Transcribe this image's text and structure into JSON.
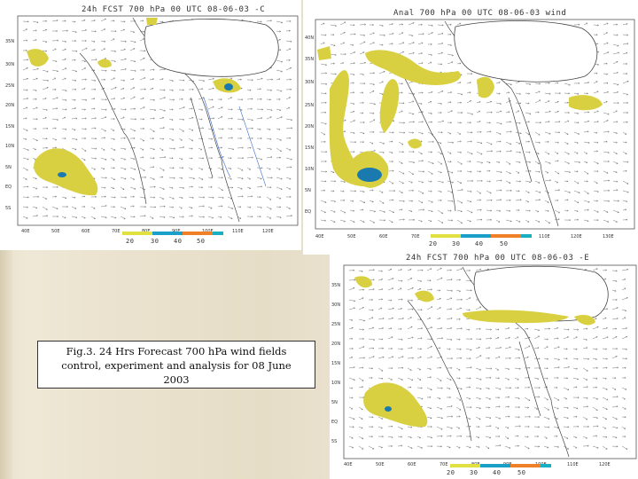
{
  "panels": {
    "control": {
      "title": "24h FCST 700 hPa 00 UTC 08-06-03 -C",
      "legend": [
        "20",
        "30",
        "40",
        "50"
      ]
    },
    "analysis": {
      "title": "Anal 700 hPa 00 UTC 08-06-03 wind",
      "legend": [
        "20",
        "30",
        "40",
        "50"
      ]
    },
    "experiment": {
      "title": "24h FCST 700 hPa 00 UTC 08-06-03 -E",
      "legend": [
        "20",
        "30",
        "40",
        "50"
      ]
    }
  },
  "legend_colors": [
    "#e0e040",
    "#1aa0c8",
    "#f08028",
    "#18b0c0"
  ],
  "caption": {
    "line1": "Fig.3. 24 Hrs Forecast 700 hPa wind fields",
    "line2": "control, experiment and analysis for 08 June",
    "line3": "2003"
  }
}
